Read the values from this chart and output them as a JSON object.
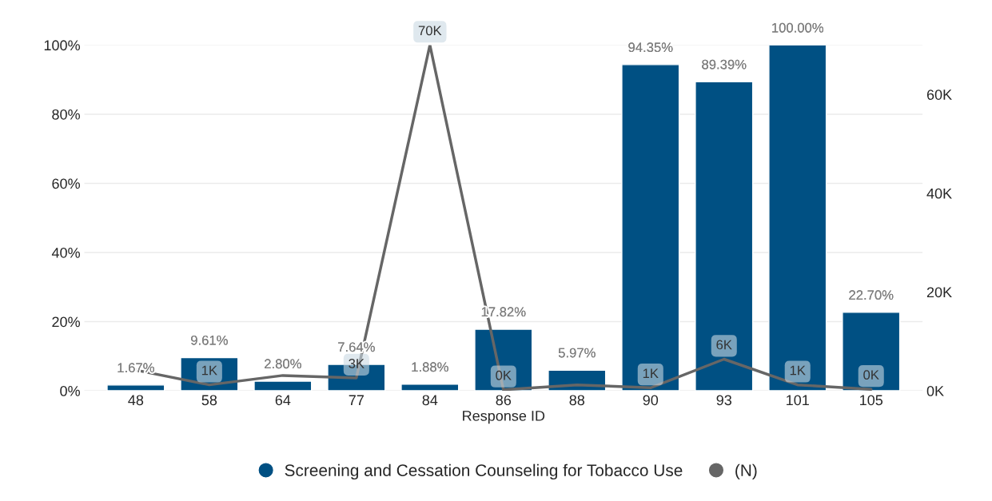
{
  "chart_data": {
    "type": "bar",
    "xlabel": "Response ID",
    "categories": [
      "48",
      "58",
      "64",
      "77",
      "84",
      "86",
      "88",
      "90",
      "93",
      "101",
      "105"
    ],
    "series": [
      {
        "name": "Screening and Cessation Counseling for Tobacco Use",
        "color": "#005083",
        "values": [
          1.67,
          9.61,
          2.8,
          7.64,
          1.88,
          17.82,
          5.97,
          94.35,
          89.39,
          100.0,
          22.7
        ],
        "value_labels": [
          "1.67%",
          "9.61%",
          "2.80%",
          "7.64%",
          "1.88%",
          "17.82%",
          "5.97%",
          "94.35%",
          "89.39%",
          "100.00%",
          "22.70%"
        ]
      },
      {
        "name": "(N)",
        "type": "line",
        "axis": "y2",
        "color": "#666666",
        "values": [
          4200,
          1200,
          3100,
          2600,
          70000,
          200,
          1200,
          600,
          6400,
          1200,
          300
        ],
        "value_labels": [
          null,
          "1K",
          null,
          "3K",
          "70K",
          "0K",
          null,
          "1K",
          "6K",
          "1K",
          "0K"
        ]
      }
    ],
    "ylim": [
      0,
      100
    ],
    "yticks": [
      {
        "value": 0,
        "label": "0%"
      },
      {
        "value": 20,
        "label": "20%"
      },
      {
        "value": 40,
        "label": "40%"
      },
      {
        "value": 60,
        "label": "60%"
      },
      {
        "value": 80,
        "label": "80%"
      },
      {
        "value": 100,
        "label": "100%"
      }
    ],
    "y2lim": [
      0,
      70000
    ],
    "y2ticks": [
      {
        "value": 0,
        "label": "0K"
      },
      {
        "value": 20000,
        "label": "20K"
      },
      {
        "value": 40000,
        "label": "40K"
      },
      {
        "value": 60000,
        "label": "60K"
      }
    ],
    "grid": "y",
    "legend": "bottom",
    "marker": "none",
    "line_style": "solid"
  }
}
